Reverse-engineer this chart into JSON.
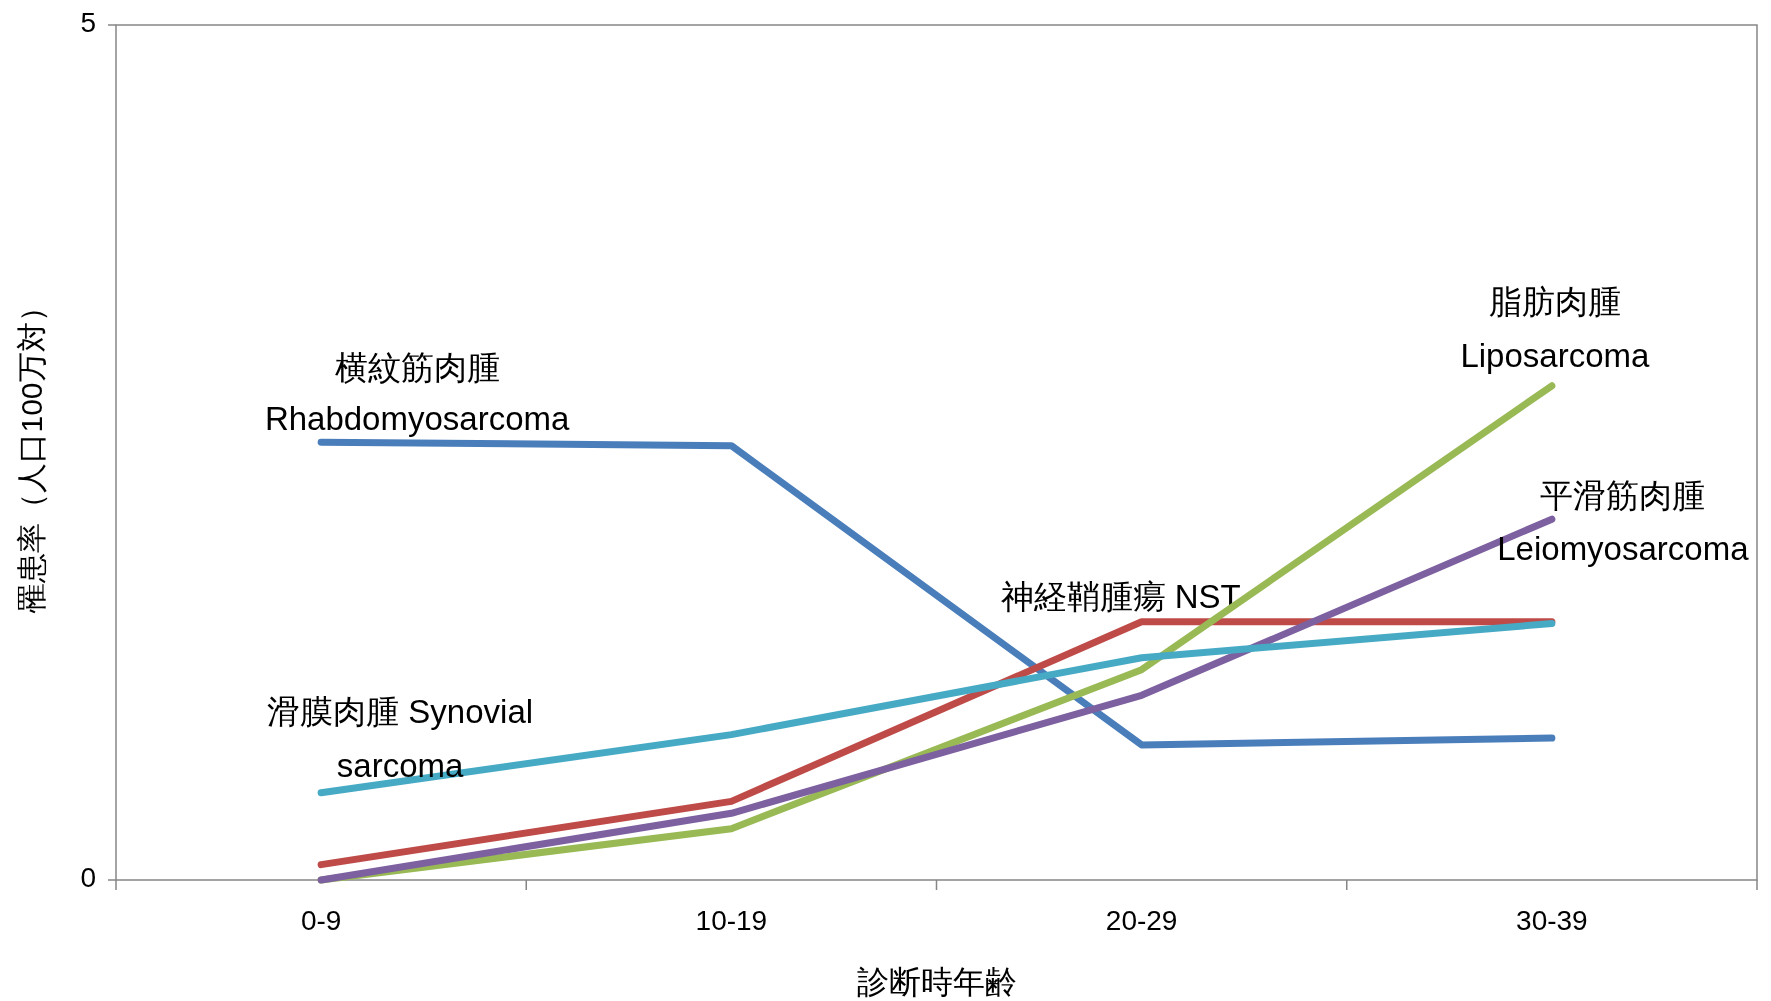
{
  "chart_data": {
    "type": "line",
    "xlabel": "診断時年齢",
    "ylabel": "罹患率（人口100万対）",
    "categories": [
      "0-9",
      "10-19",
      "20-29",
      "30-39"
    ],
    "ylim": [
      0,
      5
    ],
    "yticks": [
      0,
      5
    ],
    "marker": "none",
    "line_style": "solid",
    "series": [
      {
        "name": "横紋筋肉腫\nRhabdomyosarcoma",
        "color": "#4a7ebb",
        "values": [
          2.56,
          2.54,
          0.79,
          0.83
        ]
      },
      {
        "name": "神経鞘腫瘍 NST",
        "color": "#be4b48",
        "values": [
          0.09,
          0.46,
          1.51,
          1.51
        ]
      },
      {
        "name": "脂肪肉腫\nLiposarcoma",
        "color": "#98b954",
        "values": [
          0,
          0.3,
          1.23,
          2.89
        ]
      },
      {
        "name": "平滑筋肉腫\nLeiomyosarcoma",
        "color": "#7d60a0",
        "values": [
          0,
          0.39,
          1.08,
          2.11
        ]
      },
      {
        "name": "滑膜肉腫 Synovial\nsarcoma",
        "color": "#46aac5",
        "values": [
          0.51,
          0.85,
          1.3,
          1.5
        ]
      }
    ]
  }
}
